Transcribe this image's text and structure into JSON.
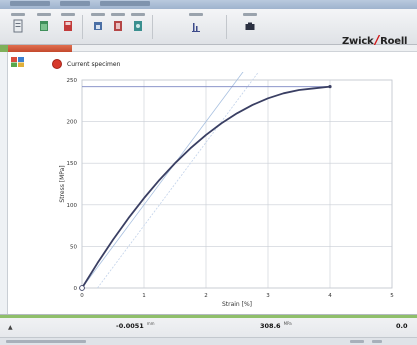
{
  "window": {
    "title": ""
  },
  "toolbar": {
    "buttons": [
      {
        "name": "toolbar-button-1",
        "icon": "document-icon"
      },
      {
        "name": "toolbar-button-2",
        "icon": "open-icon"
      },
      {
        "name": "toolbar-button-3",
        "icon": "save-icon"
      },
      {
        "name": "toolbar-button-4",
        "icon": "print-icon"
      },
      {
        "name": "toolbar-button-5",
        "icon": "export-icon"
      },
      {
        "name": "toolbar-button-6",
        "icon": "settings-icon"
      },
      {
        "name": "toolbar-button-7",
        "icon": "chart-icon"
      },
      {
        "name": "toolbar-button-8",
        "icon": "camera-icon"
      }
    ],
    "brand": {
      "left": "Zwick",
      "slash": "/",
      "right": "Roell"
    }
  },
  "panel": {
    "title": "Current specimen"
  },
  "chart_data": {
    "type": "line",
    "xlabel": "Strain [%]",
    "ylabel": "Stress [MPa]",
    "xlim": [
      0,
      5
    ],
    "ylim": [
      0,
      250
    ],
    "xticks": [
      0,
      1,
      2,
      3,
      4,
      5
    ],
    "yticks": [
      0,
      50,
      100,
      150,
      200,
      250
    ],
    "grid": true,
    "series": [
      {
        "values_x": [
          0,
          0.25,
          0.5,
          0.75,
          1.0,
          1.25,
          1.5,
          1.75,
          2.0,
          2.25,
          2.5,
          2.75,
          3.0,
          3.25,
          3.5,
          3.75,
          4.0
        ],
        "values_y": [
          0,
          30,
          58,
          84,
          108,
          130,
          150,
          168,
          184,
          198,
          210,
          220,
          228,
          234,
          238,
          240,
          242
        ],
        "color": "#3a3f63"
      }
    ],
    "reference_lines": [
      {
        "kind": "modulus",
        "x": [
          0,
          2.75
        ],
        "y": [
          0,
          275
        ],
        "color": "#a8c0e0"
      },
      {
        "kind": "offset",
        "x": [
          0.25,
          3.1
        ],
        "y": [
          0,
          285
        ],
        "color": "#c2d2ea"
      },
      {
        "kind": "horizontal",
        "x": [
          0,
          4.0
        ],
        "y": [
          242,
          242
        ],
        "color": "#7c86c2"
      }
    ],
    "marker": {
      "x": 0,
      "y": 0
    }
  },
  "status": {
    "arrow": "▲",
    "items": [
      {
        "value": "-0.0051",
        "unit": "mm"
      },
      {
        "value": "308.6",
        "unit": "MPa"
      },
      {
        "value": "0.0",
        "unit": ""
      }
    ]
  },
  "colors": {
    "accent": "#d01818",
    "strip_red": "#c44a2e",
    "strip_green": "#7fb05a"
  }
}
